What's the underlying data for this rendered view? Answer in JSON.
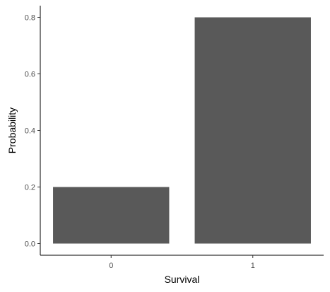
{
  "chart_data": {
    "type": "bar",
    "categories": [
      "0",
      "1"
    ],
    "values": [
      0.2,
      0.8
    ],
    "xlabel": "Survival",
    "ylabel": "Probability",
    "ylim": [
      0,
      0.8
    ],
    "yticks": [
      0.0,
      0.2,
      0.4,
      0.6,
      0.8
    ],
    "ytick_labels": [
      "0.0",
      "0.2",
      "0.4",
      "0.6",
      "0.8"
    ],
    "grid": false,
    "bar_color": "#595959",
    "axis_color": "#000000"
  }
}
